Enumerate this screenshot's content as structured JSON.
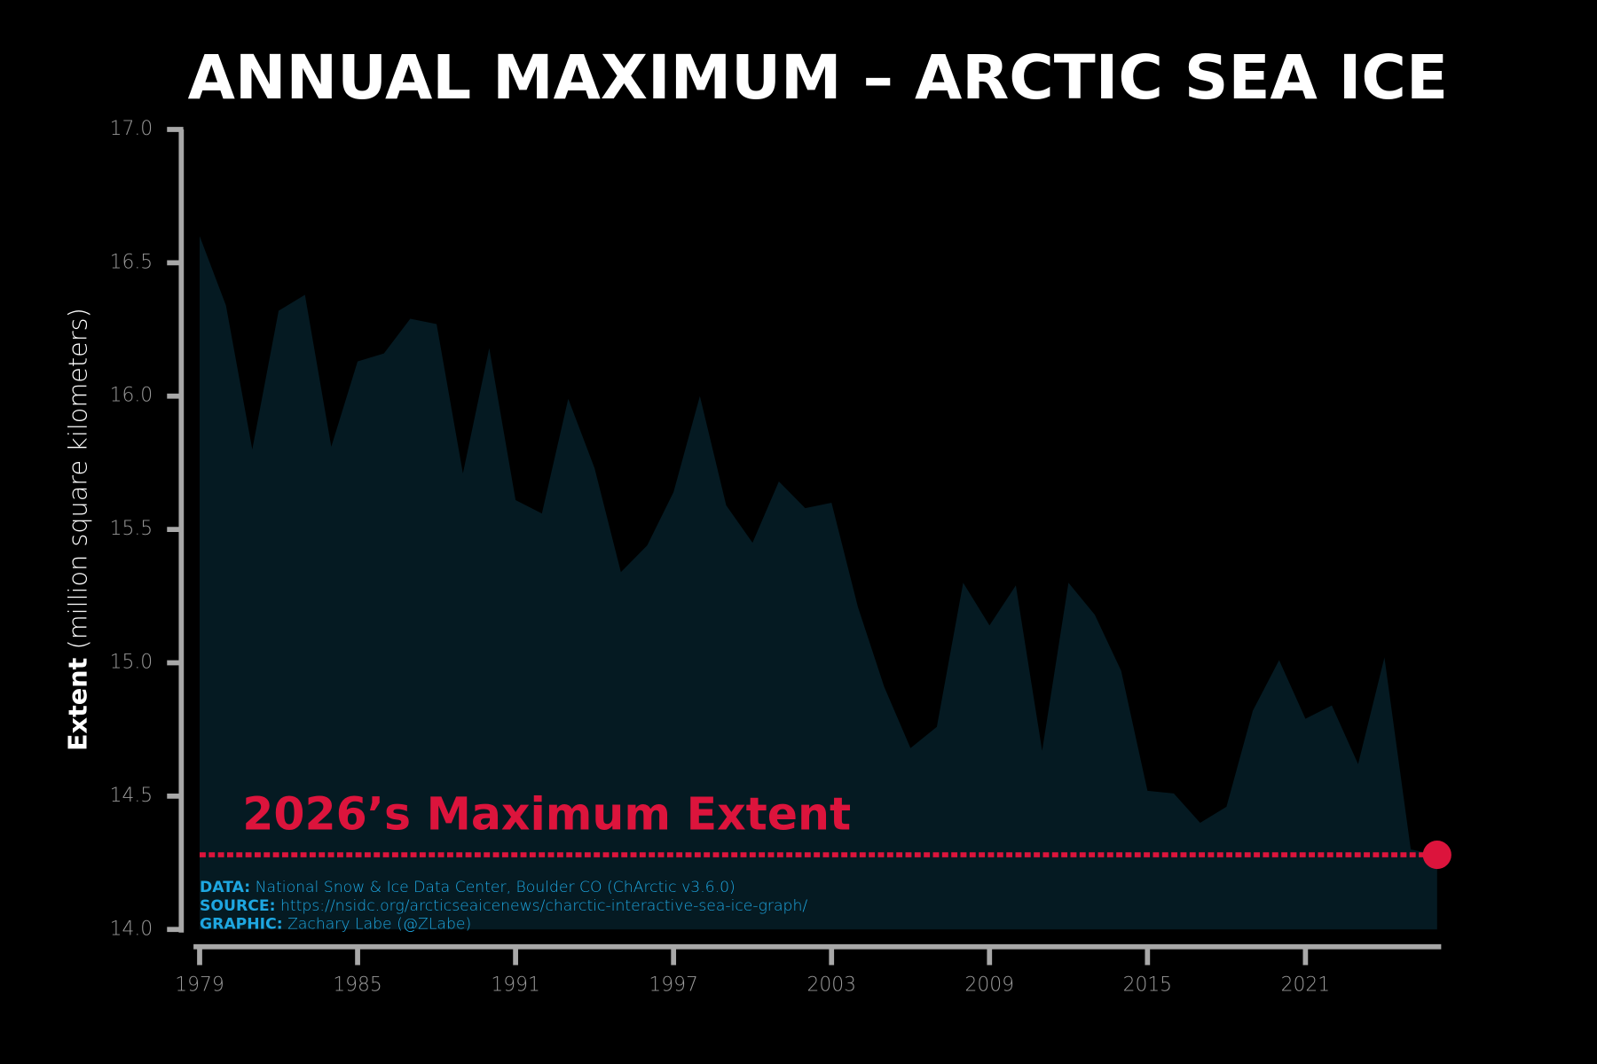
{
  "chart_data": {
    "type": "area",
    "title": "ANNUAL MAXIMUM – ARCTIC SEA ICE",
    "ylabel_bold": "Extent",
    "ylabel": "(million square kilometers)",
    "annotation": "2026’s Maximum Extent",
    "x": [
      1979,
      1980,
      1981,
      1982,
      1983,
      1984,
      1985,
      1986,
      1987,
      1988,
      1989,
      1990,
      1991,
      1992,
      1993,
      1994,
      1995,
      1996,
      1997,
      1998,
      1999,
      2000,
      2001,
      2002,
      2003,
      2004,
      2005,
      2006,
      2007,
      2008,
      2009,
      2010,
      2011,
      2012,
      2013,
      2014,
      2015,
      2016,
      2017,
      2018,
      2019,
      2020,
      2021,
      2022,
      2023,
      2024,
      2025,
      2026
    ],
    "values": [
      16.6,
      16.34,
      15.8,
      16.32,
      16.38,
      15.81,
      16.13,
      16.16,
      16.29,
      16.27,
      15.71,
      16.18,
      15.61,
      15.56,
      15.99,
      15.73,
      15.34,
      15.44,
      15.64,
      16.0,
      15.59,
      15.45,
      15.68,
      15.58,
      15.6,
      15.21,
      14.91,
      14.68,
      14.76,
      15.3,
      15.14,
      15.29,
      14.67,
      15.3,
      15.18,
      14.97,
      14.52,
      14.51,
      14.4,
      14.46,
      14.82,
      15.01,
      14.79,
      14.84,
      14.62,
      15.02,
      14.3,
      14.28
    ],
    "color": "#051a22",
    "highlight_color": "#dc143c",
    "xlim": [
      1979,
      2026
    ],
    "xticks": [
      1979,
      1985,
      1991,
      1997,
      2003,
      2009,
      2015,
      2021
    ],
    "ylim": [
      14,
      17
    ],
    "yticks": [
      {
        "value": 14,
        "label": "14.0"
      },
      {
        "value": 14.5,
        "label": "14.5"
      },
      {
        "value": 15,
        "label": "15.0"
      },
      {
        "value": 15.5,
        "label": "15.5"
      },
      {
        "value": 16,
        "label": "16.0"
      },
      {
        "value": 16.5,
        "label": "16.5"
      },
      {
        "value": 17,
        "label": "17.0"
      }
    ],
    "notes": [
      {
        "label": "DATA:",
        "text": "National Snow & Ice Data Center, Boulder CO (ChArctic v3.6.0)"
      },
      {
        "label": "SOURCE:",
        "text": "https://nsidc.org/arcticseaicenews/charctic-interactive-sea-ice-graph/"
      },
      {
        "label": "GRAPHIC:",
        "text": "Zachary Labe (@ZLabe)"
      }
    ]
  }
}
